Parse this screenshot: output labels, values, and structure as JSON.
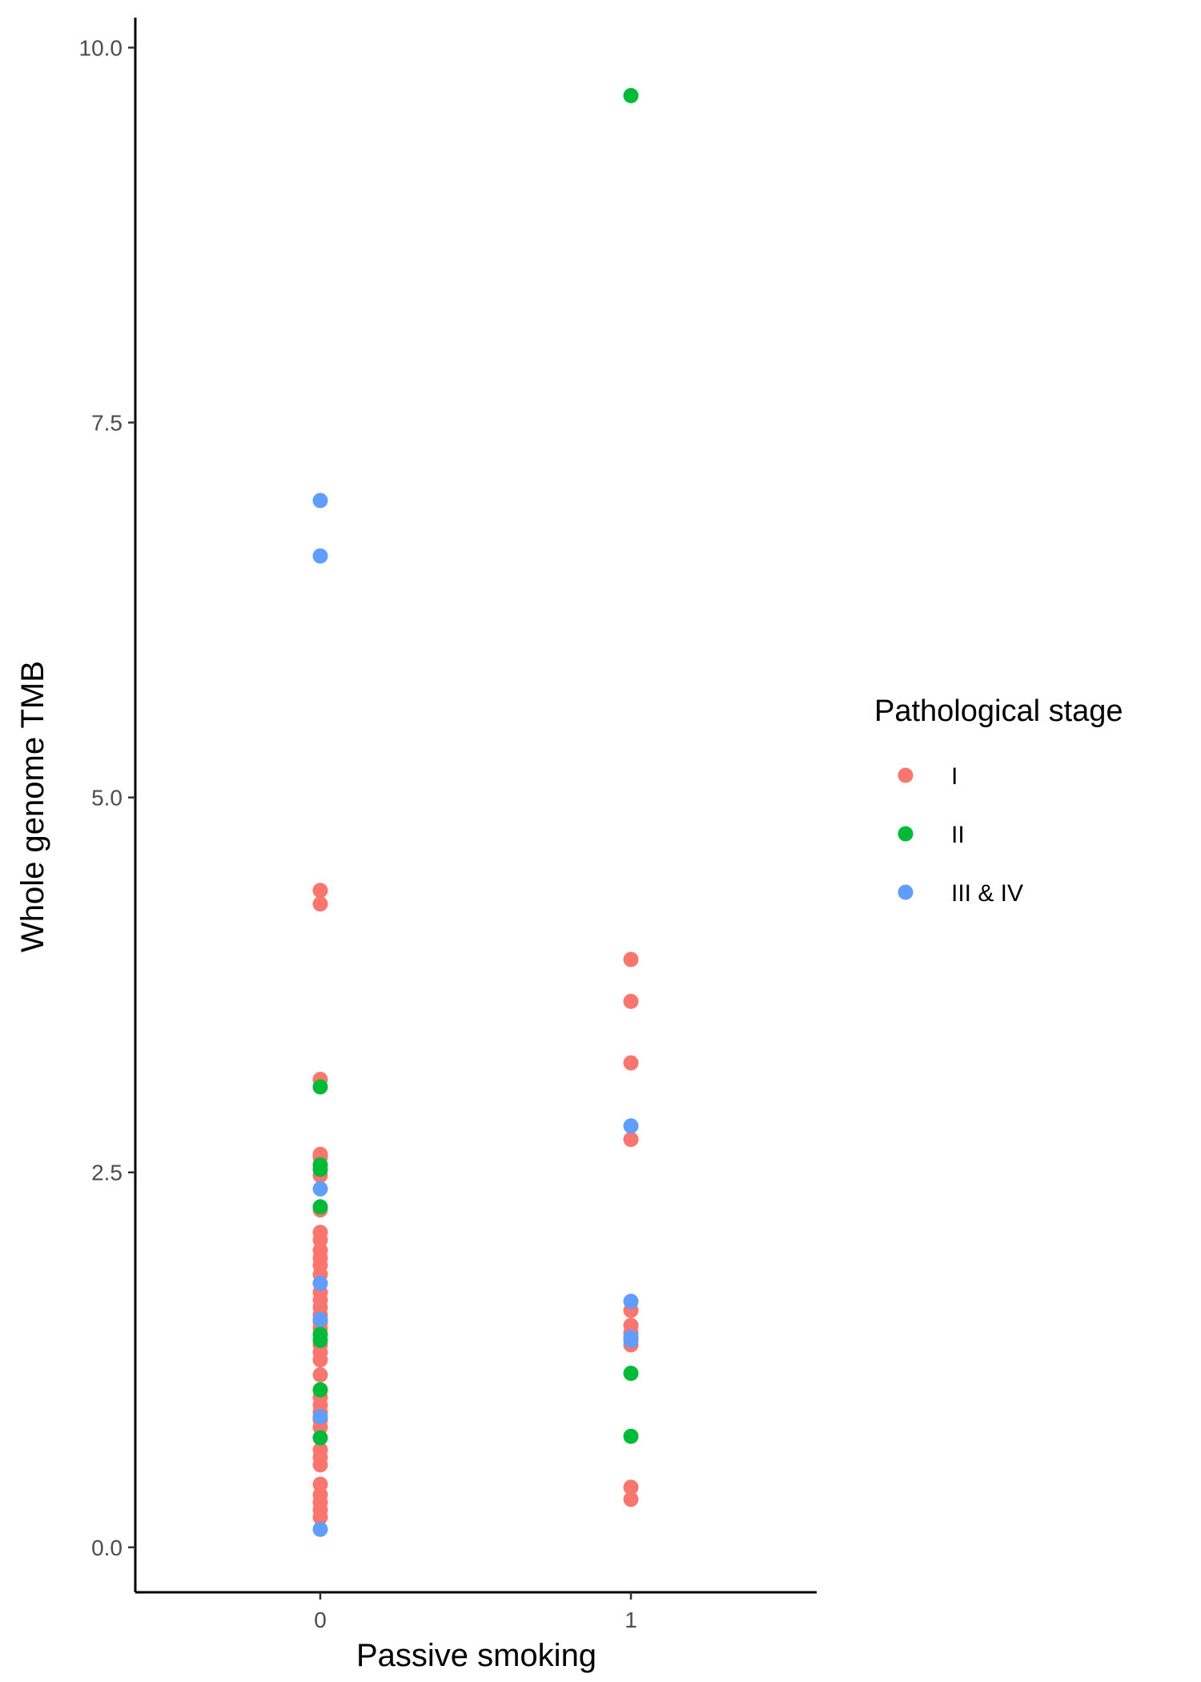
{
  "chart_data": {
    "type": "scatter",
    "xlabel": "Passive smoking",
    "ylabel": "Whole genome TMB",
    "x_categories": [
      "0",
      "1"
    ],
    "ylim": [
      -0.3,
      10.2
    ],
    "y_ticks": [
      "0.0",
      "2.5",
      "5.0",
      "7.5",
      "10.0"
    ],
    "y_tick_values": [
      0,
      2.5,
      5,
      7.5,
      10
    ],
    "grid": false,
    "legend": {
      "title": "Pathological stage",
      "position": "right",
      "entries": [
        {
          "label": "I",
          "color": "#F8766D"
        },
        {
          "label": "II",
          "color": "#00BA38"
        },
        {
          "label": "III & IV",
          "color": "#619CFF"
        }
      ]
    },
    "series": [
      {
        "name": "I",
        "color": "#F8766D",
        "points": [
          {
            "x": "0",
            "y": 4.38
          },
          {
            "x": "0",
            "y": 4.29
          },
          {
            "x": "0",
            "y": 3.12
          },
          {
            "x": "0",
            "y": 2.62
          },
          {
            "x": "0",
            "y": 2.6
          },
          {
            "x": "0",
            "y": 2.48
          },
          {
            "x": "0",
            "y": 2.25
          },
          {
            "x": "0",
            "y": 2.1
          },
          {
            "x": "0",
            "y": 2.05
          },
          {
            "x": "0",
            "y": 1.98
          },
          {
            "x": "0",
            "y": 1.93
          },
          {
            "x": "0",
            "y": 1.88
          },
          {
            "x": "0",
            "y": 1.82
          },
          {
            "x": "0",
            "y": 1.76
          },
          {
            "x": "0",
            "y": 1.7
          },
          {
            "x": "0",
            "y": 1.65
          },
          {
            "x": "0",
            "y": 1.6
          },
          {
            "x": "0",
            "y": 1.55
          },
          {
            "x": "0",
            "y": 1.5
          },
          {
            "x": "0",
            "y": 1.46
          },
          {
            "x": "0",
            "y": 1.35
          },
          {
            "x": "0",
            "y": 1.3
          },
          {
            "x": "0",
            "y": 1.25
          },
          {
            "x": "0",
            "y": 1.15
          },
          {
            "x": "0",
            "y": 1.05
          },
          {
            "x": "0",
            "y": 1.0
          },
          {
            "x": "0",
            "y": 0.95
          },
          {
            "x": "0",
            "y": 0.9
          },
          {
            "x": "0",
            "y": 0.85
          },
          {
            "x": "0",
            "y": 0.8
          },
          {
            "x": "0",
            "y": 0.65
          },
          {
            "x": "0",
            "y": 0.6
          },
          {
            "x": "0",
            "y": 0.55
          },
          {
            "x": "0",
            "y": 0.42
          },
          {
            "x": "0",
            "y": 0.35
          },
          {
            "x": "0",
            "y": 0.3
          },
          {
            "x": "0",
            "y": 0.25
          },
          {
            "x": "0",
            "y": 0.2
          },
          {
            "x": "1",
            "y": 3.92
          },
          {
            "x": "1",
            "y": 3.64
          },
          {
            "x": "1",
            "y": 3.23
          },
          {
            "x": "1",
            "y": 2.72
          },
          {
            "x": "1",
            "y": 1.58
          },
          {
            "x": "1",
            "y": 1.48
          },
          {
            "x": "1",
            "y": 1.43
          },
          {
            "x": "1",
            "y": 1.35
          },
          {
            "x": "1",
            "y": 0.4
          },
          {
            "x": "1",
            "y": 0.32
          }
        ]
      },
      {
        "name": "II",
        "color": "#00BA38",
        "points": [
          {
            "x": "0",
            "y": 3.07
          },
          {
            "x": "0",
            "y": 2.55
          },
          {
            "x": "0",
            "y": 2.52
          },
          {
            "x": "0",
            "y": 2.27
          },
          {
            "x": "0",
            "y": 1.42
          },
          {
            "x": "0",
            "y": 1.38
          },
          {
            "x": "0",
            "y": 1.05
          },
          {
            "x": "0",
            "y": 0.73
          },
          {
            "x": "1",
            "y": 9.68
          },
          {
            "x": "1",
            "y": 1.16
          },
          {
            "x": "1",
            "y": 0.74
          }
        ]
      },
      {
        "name": "III & IV",
        "color": "#619CFF",
        "points": [
          {
            "x": "0",
            "y": 6.98
          },
          {
            "x": "0",
            "y": 6.61
          },
          {
            "x": "0",
            "y": 2.39
          },
          {
            "x": "0",
            "y": 1.76
          },
          {
            "x": "0",
            "y": 1.52
          },
          {
            "x": "0",
            "y": 0.87
          },
          {
            "x": "0",
            "y": 0.12
          },
          {
            "x": "1",
            "y": 2.81
          },
          {
            "x": "1",
            "y": 1.64
          },
          {
            "x": "1",
            "y": 1.4
          },
          {
            "x": "1",
            "y": 1.38
          }
        ]
      }
    ]
  }
}
